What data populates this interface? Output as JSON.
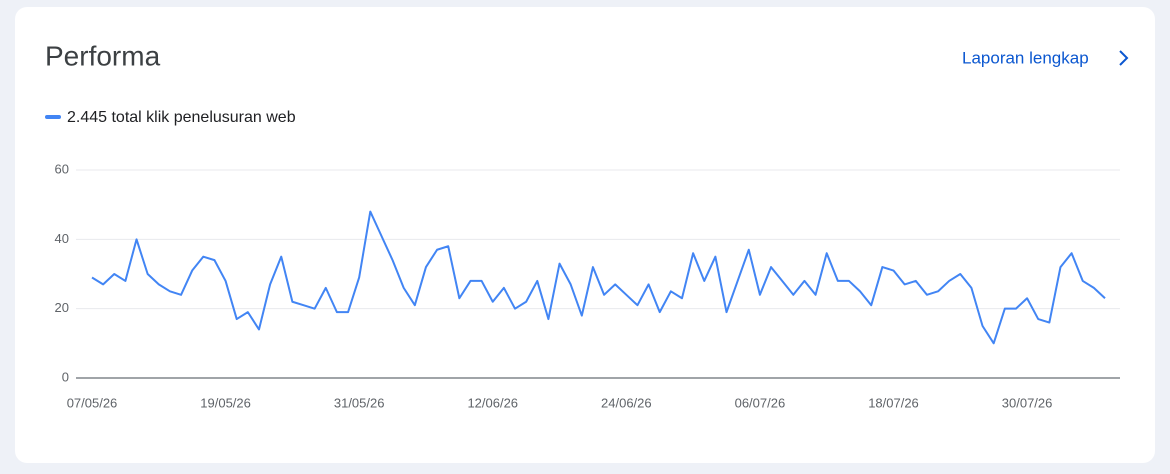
{
  "header": {
    "title": "Performa",
    "link": "Laporan lengkap"
  },
  "chart_data": {
    "type": "line",
    "categories": [
      "07/05/26",
      null,
      null,
      null,
      null,
      null,
      null,
      null,
      null,
      null,
      null,
      null,
      "19/05/26",
      null,
      null,
      null,
      null,
      null,
      null,
      null,
      null,
      null,
      null,
      null,
      "31/05/26",
      null,
      null,
      null,
      null,
      null,
      null,
      null,
      null,
      null,
      null,
      null,
      "12/06/26",
      null,
      null,
      null,
      null,
      null,
      null,
      null,
      null,
      null,
      null,
      null,
      "24/06/26",
      null,
      null,
      null,
      null,
      null,
      null,
      null,
      null,
      null,
      null,
      null,
      "06/07/26",
      null,
      null,
      null,
      null,
      null,
      null,
      null,
      null,
      null,
      null,
      null,
      "18/07/26",
      null,
      null,
      null,
      null,
      null,
      null,
      null,
      null,
      null,
      null,
      null,
      "30/07/26",
      null,
      null,
      null,
      null,
      null,
      null,
      null
    ],
    "series": [
      {
        "name": "2.445 total klik penelusuran web",
        "color": "#4285f4",
        "values": [
          29,
          27,
          30,
          28,
          40,
          30,
          27,
          25,
          24,
          31,
          35,
          34,
          28,
          17,
          19,
          14,
          27,
          35,
          22,
          21,
          20,
          26,
          19,
          19,
          29,
          48,
          41,
          34,
          26,
          21,
          32,
          37,
          38,
          23,
          28,
          28,
          22,
          26,
          20,
          22,
          28,
          17,
          33,
          27,
          18,
          32,
          24,
          27,
          24,
          21,
          27,
          19,
          25,
          23,
          36,
          28,
          35,
          19,
          28,
          37,
          24,
          32,
          28,
          24,
          28,
          24,
          36,
          28,
          28,
          25,
          21,
          32,
          31,
          27,
          28,
          24,
          25,
          28,
          30,
          26,
          15,
          10,
          20,
          20,
          23,
          17,
          16,
          32,
          36,
          28,
          26,
          23
        ]
      }
    ],
    "ylim": [
      0,
      60
    ],
    "yticks": [
      0,
      20,
      40,
      60
    ],
    "grid": true
  }
}
